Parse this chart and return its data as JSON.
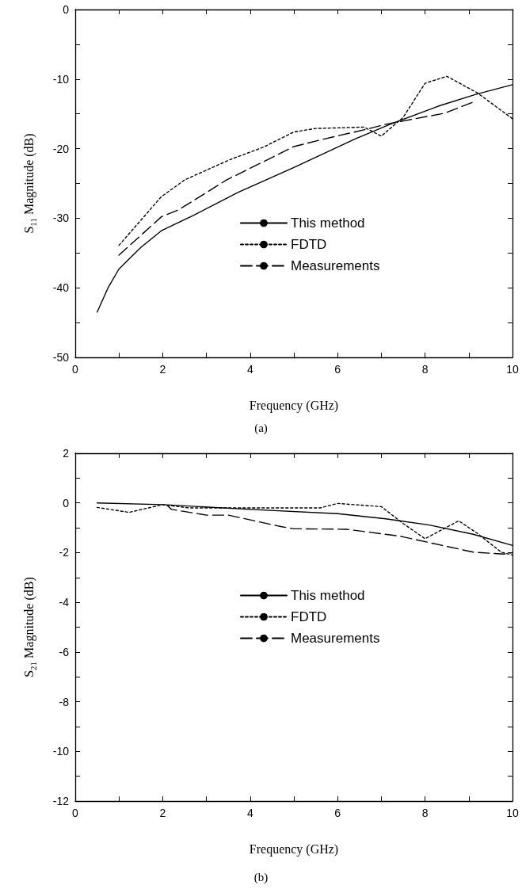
{
  "chart_data": [
    {
      "type": "line",
      "xlabel": "Frequency (GHz)",
      "ylabel": "S$_{11}$ Magnitude (dB)",
      "annotations": [
        "(a)"
      ],
      "xlim": [
        0,
        10
      ],
      "xticks": [
        0,
        {
          "value": 1,
          "label": null
        },
        2,
        {
          "value": 3,
          "label": null
        },
        4,
        {
          "value": 5,
          "label": null
        },
        6,
        {
          "value": 7,
          "label": null
        },
        8,
        {
          "value": 9,
          "label": null
        },
        10
      ],
      "ylim": [
        -50,
        0
      ],
      "yticks": [
        -50,
        {
          "value": -45,
          "label": null
        },
        -40,
        {
          "value": -35,
          "label": null
        },
        -30,
        {
          "value": -25,
          "label": null
        },
        -20,
        {
          "value": -15,
          "label": null
        },
        -10,
        {
          "value": -5,
          "label": null
        },
        0
      ],
      "legend": "bottom",
      "marker": "none",
      "grid": false,
      "series": [
        {
          "name": "This method",
          "color": "#000000",
          "line_style": "solid",
          "x": [
            0.5,
            0.75,
            1.0,
            1.5,
            1.97,
            2.7,
            3.72,
            5.0,
            6.4,
            7.2,
            8.3,
            9.16,
            10
          ],
          "values": [
            -43.5,
            -40,
            -37.3,
            -34.2,
            -31.8,
            -29.6,
            -26.3,
            -22.7,
            -18.6,
            -16.5,
            -13.9,
            -12.2,
            -10.8
          ]
        },
        {
          "name": "FDTD",
          "color": "#000000",
          "line_style": "dotted",
          "x": [
            1.0,
            1.97,
            2.5,
            3.53,
            4.3,
            5.0,
            5.5,
            6.6,
            7.0,
            7.5,
            8.0,
            8.5,
            9.2,
            10
          ],
          "values": [
            -33.9,
            -26.9,
            -24.5,
            -21.6,
            -19.8,
            -17.6,
            -17.1,
            -16.9,
            -18.2,
            -15.5,
            -10.6,
            -9.6,
            -12.0,
            -15.7
          ]
        },
        {
          "name": "Measurements",
          "color": "#000000",
          "line_style": "dashed",
          "x": [
            1.0,
            1.97,
            2.36,
            2.8,
            3.46,
            5.0,
            5.7,
            6.6,
            7.1,
            8.45,
            9.1
          ],
          "values": [
            -35.3,
            -29.8,
            -28.8,
            -27.1,
            -24.5,
            -19.7,
            -18.6,
            -17.3,
            -16.5,
            -14.9,
            -13.3
          ]
        }
      ]
    },
    {
      "type": "line",
      "xlabel": "Frequency (GHz)",
      "ylabel": "S$_{21}$ Magnitude (dB)",
      "annotations": [
        "(b)"
      ],
      "xlim": [
        0,
        10
      ],
      "xticks": [
        0,
        {
          "value": 1,
          "label": null
        },
        2,
        {
          "value": 3,
          "label": null
        },
        4,
        {
          "value": 5,
          "label": null
        },
        6,
        {
          "value": 7,
          "label": null
        },
        8,
        {
          "value": 9,
          "label": null
        },
        10
      ],
      "ylim": [
        -12,
        2
      ],
      "yticks": [
        -12,
        {
          "value": -11,
          "label": null
        },
        -10,
        {
          "value": -9,
          "label": null
        },
        -8,
        {
          "value": -7,
          "label": null
        },
        -6,
        {
          "value": -5,
          "label": null
        },
        -4,
        {
          "value": -3,
          "label": null
        },
        -2,
        {
          "value": -1,
          "label": null
        },
        0,
        {
          "value": 1,
          "label": null
        },
        2
      ],
      "legend": "center",
      "marker": "none",
      "grid": false,
      "series": [
        {
          "name": "This method",
          "color": "#000000",
          "line_style": "solid",
          "x": [
            0.5,
            2.0,
            4.0,
            6.0,
            7.1,
            8.1,
            9.1,
            10
          ],
          "values": [
            0,
            -0.07,
            -0.26,
            -0.43,
            -0.64,
            -0.89,
            -1.26,
            -1.71
          ]
        },
        {
          "name": "FDTD",
          "color": "#000000",
          "line_style": "dotted",
          "x": [
            0.5,
            1.23,
            2.0,
            2.6,
            5.6,
            6.0,
            7.0,
            7.5,
            8.0,
            8.77,
            9.2,
            9.74,
            10
          ],
          "values": [
            -0.18,
            -0.38,
            -0.07,
            -0.2,
            -0.2,
            -0.02,
            -0.15,
            -0.83,
            -1.44,
            -0.72,
            -1.23,
            -1.98,
            -2.1
          ]
        },
        {
          "name": "Measurements",
          "color": "#000000",
          "line_style": "dashed",
          "x": [
            2.1,
            2.2,
            3.0,
            3.5,
            4.7,
            5.0,
            6.2,
            7.4,
            9.1,
            9.8,
            10
          ],
          "values": [
            -0.1,
            -0.26,
            -0.49,
            -0.49,
            -0.95,
            -1.04,
            -1.06,
            -1.33,
            -1.98,
            -2.06,
            -2.0
          ]
        }
      ]
    }
  ]
}
